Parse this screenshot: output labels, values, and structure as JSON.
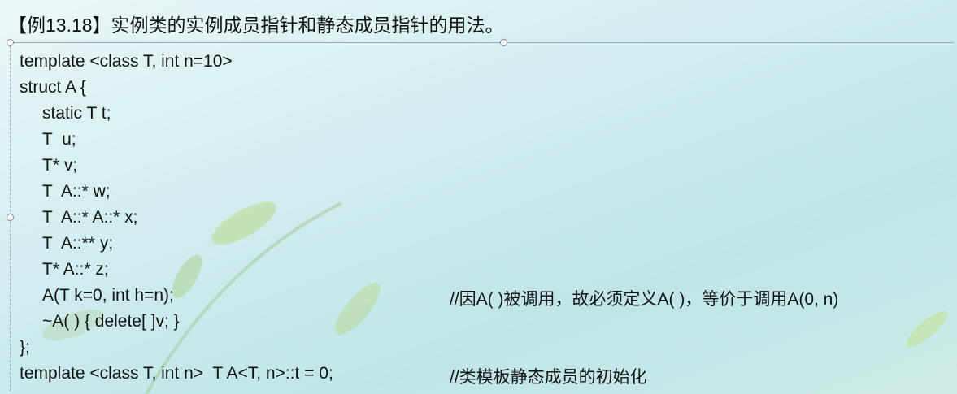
{
  "title": "【例13.18】实例类的实例成员指针和静态成员指针的用法。",
  "code": {
    "lines": [
      {
        "code": "template <class T, int n=10>"
      },
      {
        "code": "struct A {"
      },
      {
        "code": "static T t;"
      },
      {
        "code": "T  u;"
      },
      {
        "code": "T* v;"
      },
      {
        "code": "T  A::* w;"
      },
      {
        "code": "T  A::* A::* x;"
      },
      {
        "code": "T  A::** y;"
      },
      {
        "code": "T* A::* z;"
      },
      {
        "code": "A(T k=0, int h=n);",
        "comment": "//因A( )被调用，故必须定义A( )，等价于调用A(0, n)"
      },
      {
        "code": "~A( ) { delete[ ]v; }"
      },
      {
        "code": "};"
      },
      {
        "code": "template <class T, int n>  T A<T, n>::t = 0;",
        "comment": "//类模板静态成员的初始化"
      }
    ]
  }
}
